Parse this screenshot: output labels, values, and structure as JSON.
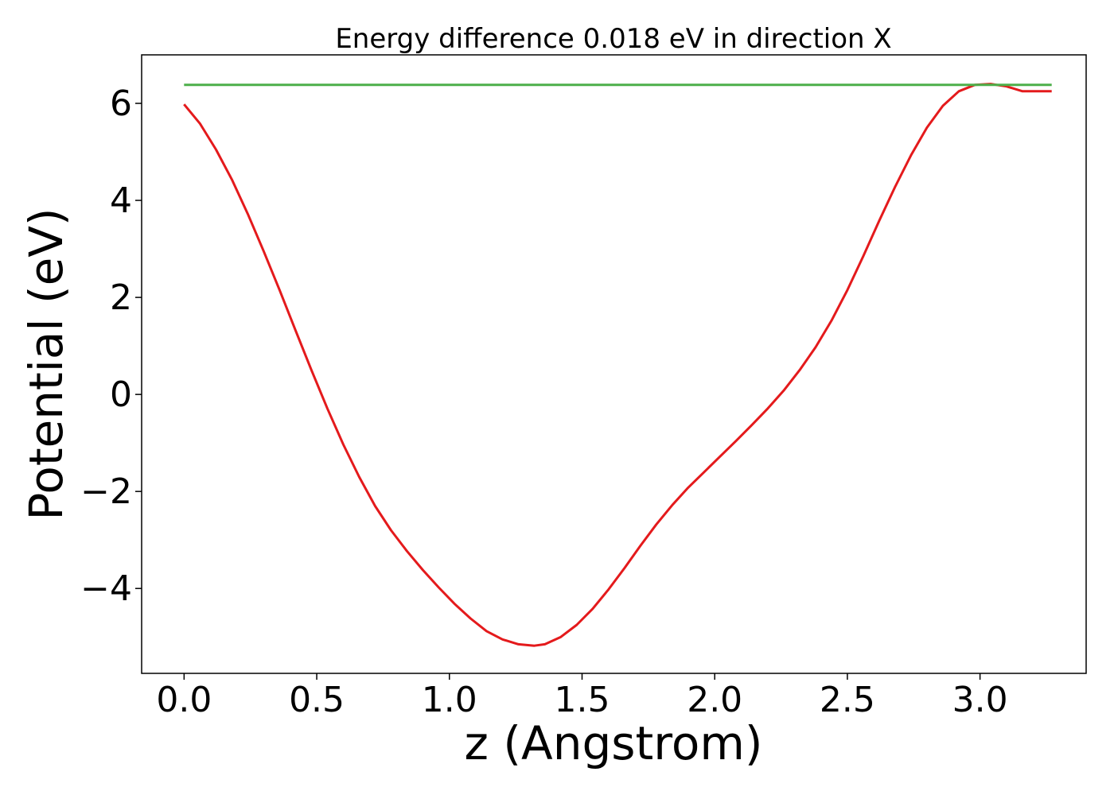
{
  "chart_data": {
    "type": "line",
    "title": "Energy difference 0.018 eV in direction X",
    "xlabel": "z (Angstrom)",
    "ylabel": "Potential (eV)",
    "xlim": [
      -0.16,
      3.4
    ],
    "ylim": [
      -5.75,
      7.0
    ],
    "xticks": [
      0.0,
      0.5,
      1.0,
      1.5,
      2.0,
      2.5,
      3.0
    ],
    "xtick_labels": [
      "0.0",
      "0.5",
      "1.0",
      "1.5",
      "2.0",
      "2.5",
      "3.0"
    ],
    "yticks": [
      -4,
      -2,
      0,
      2,
      4,
      6
    ],
    "ytick_labels": [
      "−4",
      "−2",
      "0",
      "2",
      "4",
      "6"
    ],
    "grid": false,
    "series": [
      {
        "color": "#e41a1c",
        "x": [
          0.0,
          0.06,
          0.12,
          0.18,
          0.24,
          0.3,
          0.36,
          0.42,
          0.48,
          0.54,
          0.6,
          0.66,
          0.72,
          0.78,
          0.84,
          0.9,
          0.96,
          1.02,
          1.08,
          1.14,
          1.2,
          1.26,
          1.32,
          1.36,
          1.42,
          1.48,
          1.54,
          1.6,
          1.66,
          1.72,
          1.78,
          1.84,
          1.9,
          1.96,
          2.02,
          2.08,
          2.14,
          2.2,
          2.26,
          2.32,
          2.38,
          2.44,
          2.5,
          2.56,
          2.62,
          2.68,
          2.74,
          2.8,
          2.86,
          2.92,
          2.98,
          3.04,
          3.1,
          3.16,
          3.22,
          3.27
        ],
        "y": [
          5.98,
          5.58,
          5.05,
          4.43,
          3.72,
          2.95,
          2.15,
          1.32,
          0.5,
          -0.29,
          -1.03,
          -1.7,
          -2.3,
          -2.8,
          -3.23,
          -3.62,
          -3.98,
          -4.32,
          -4.62,
          -4.88,
          -5.05,
          -5.15,
          -5.18,
          -5.15,
          -5.0,
          -4.75,
          -4.42,
          -4.02,
          -3.58,
          -3.12,
          -2.68,
          -2.28,
          -1.92,
          -1.6,
          -1.28,
          -0.96,
          -0.63,
          -0.29,
          0.08,
          0.5,
          0.97,
          1.52,
          2.15,
          2.85,
          3.58,
          4.28,
          4.93,
          5.5,
          5.95,
          6.25,
          6.38,
          6.4,
          6.35,
          6.25,
          6.25,
          6.25
        ]
      },
      {
        "color": "#4daf4a",
        "x": [
          0.0,
          3.27
        ],
        "y": [
          6.38,
          6.38
        ]
      }
    ]
  }
}
